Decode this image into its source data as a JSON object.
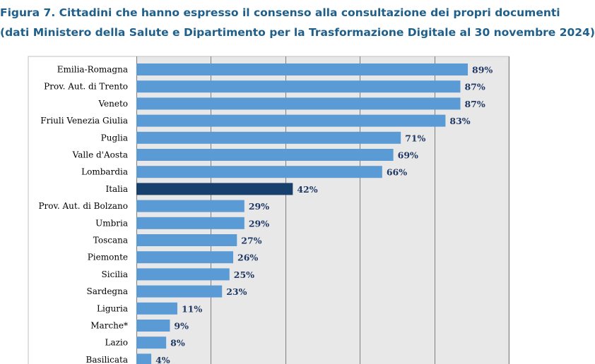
{
  "header": {
    "title_line1": "Figura 7. Cittadini che hanno espresso il consenso alla consultazione dei propri documenti",
    "title_line2": "(dati Ministero della Salute e Dipartimento per la Trasformazione Digitale al 30 novembre 2024)"
  },
  "chart_data": {
    "type": "bar",
    "orientation": "horizontal",
    "title": "Figura 7. Cittadini che hanno espresso il consenso alla consultazione dei propri documenti (dati Ministero della Salute e Dipartimento per la Trasformazione Digitale al 30 novembre 2024)",
    "categories": [
      "Emilia-Romagna",
      "Prov. Aut. di Trento",
      "Veneto",
      "Friuli Venezia Giulia",
      "Puglia",
      "Valle d'Aosta",
      "Lombardia",
      "Italia",
      "Prov. Aut. di Bolzano",
      "Umbria",
      "Toscana",
      "Piemonte",
      "Sicilia",
      "Sardegna",
      "Liguria",
      "Marche*",
      "Lazio",
      "Basilicata"
    ],
    "values": [
      89,
      87,
      87,
      83,
      71,
      69,
      66,
      42,
      29,
      29,
      27,
      26,
      25,
      23,
      11,
      9,
      8,
      4
    ],
    "value_labels": [
      "89%",
      "87%",
      "87%",
      "83%",
      "71%",
      "69%",
      "66%",
      "42%",
      "29%",
      "29%",
      "27%",
      "26%",
      "25%",
      "23%",
      "11%",
      "9%",
      "8%",
      "4%"
    ],
    "highlight_category": "Italia",
    "xlim": [
      0,
      100
    ],
    "grid": true,
    "colors": {
      "bar": "#5b9bd5",
      "highlight": "#17406d",
      "plot_background": "#e8e8e8",
      "gridline": "#7f7f7f",
      "value_label": "#1f3864",
      "title": "#1f5f8b"
    }
  }
}
